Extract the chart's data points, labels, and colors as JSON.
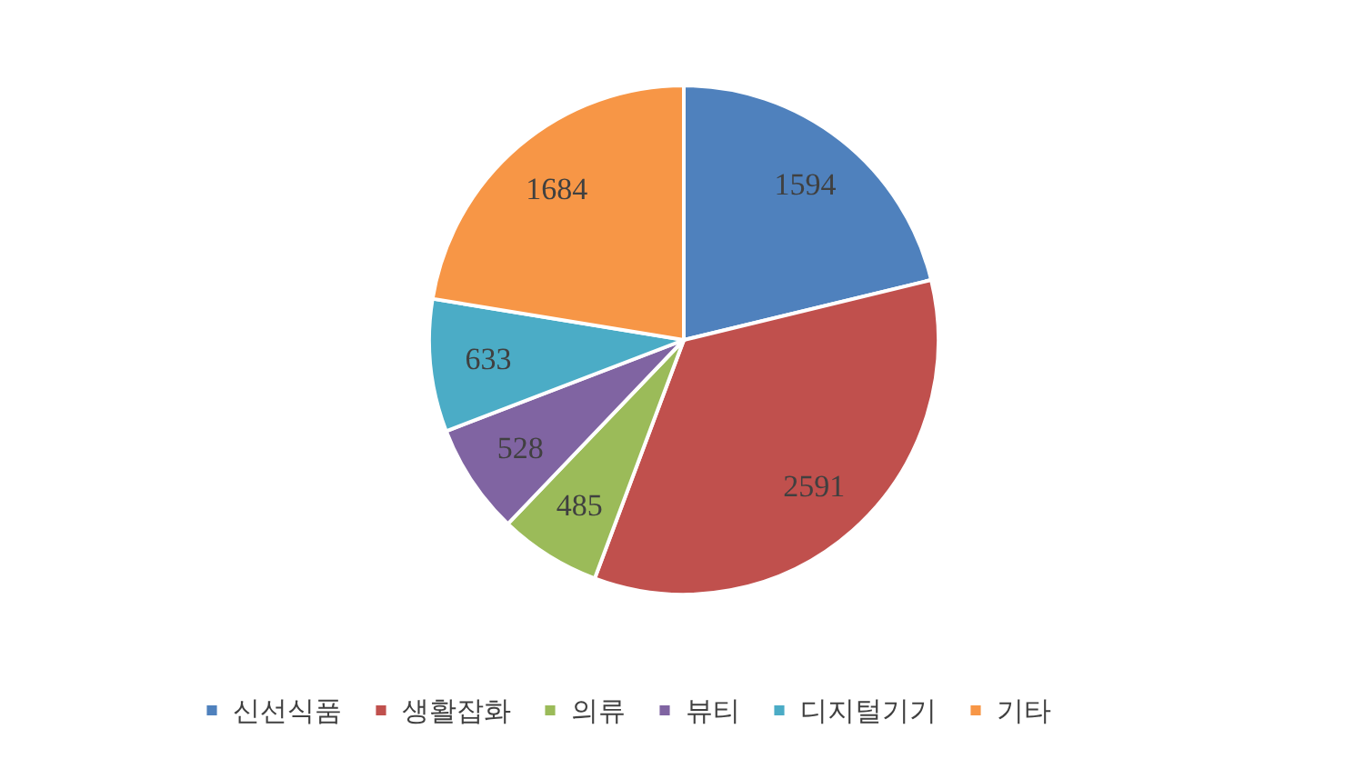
{
  "chart_data": {
    "type": "pie",
    "categories": [
      "신선식품",
      "생활잡화",
      "의류",
      "뷰티",
      "디지털기기",
      "기타"
    ],
    "values": [
      1594,
      2591,
      485,
      528,
      633,
      1684
    ],
    "colors": [
      "#4f81bd",
      "#c0504d",
      "#9bbb59",
      "#8064a2",
      "#4bacc6",
      "#f79646"
    ],
    "data_labels": true,
    "legend": "bottom"
  }
}
